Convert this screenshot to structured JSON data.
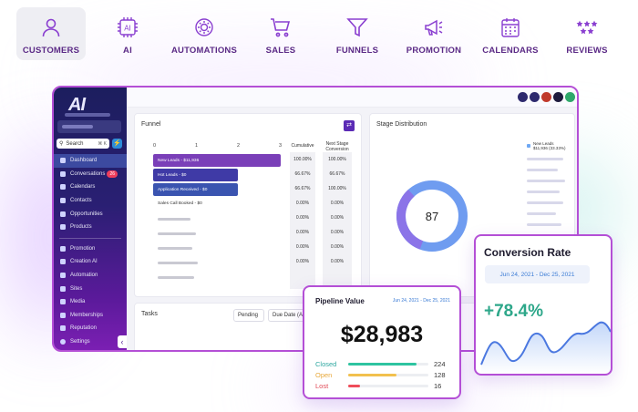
{
  "nav": [
    {
      "label": "CUSTOMERS",
      "icon": "user-icon",
      "active": true
    },
    {
      "label": "AI",
      "icon": "ai-chip-icon",
      "icon_text": "AI",
      "active": false
    },
    {
      "label": "AUTOMATIONS",
      "icon": "automation-gear-icon",
      "active": false
    },
    {
      "label": "SALES",
      "icon": "cart-icon",
      "active": false
    },
    {
      "label": "FUNNELS",
      "icon": "funnel-icon",
      "active": false
    },
    {
      "label": "PROMOTION",
      "icon": "megaphone-icon",
      "active": false
    },
    {
      "label": "CALENDARS",
      "icon": "calendar-icon",
      "active": false
    },
    {
      "label": "REVIEWS",
      "icon": "stars-icon",
      "active": false
    }
  ],
  "brand_color": "#5b2a86",
  "accent_color": "#b44fd6",
  "dashboard": {
    "logo": "AI",
    "search": {
      "label": "Search",
      "shortcut": "⌘ K"
    },
    "sidebar_menu": [
      {
        "label": "Dashboard",
        "active": true
      },
      {
        "label": "Conversations",
        "badge": "26"
      },
      {
        "label": "Calendars"
      },
      {
        "label": "Contacts"
      },
      {
        "label": "Opportunities"
      },
      {
        "label": "Products"
      }
    ],
    "sidebar_menu_2": [
      {
        "label": "Promotion"
      },
      {
        "label": "Creation AI"
      },
      {
        "label": "Automation"
      },
      {
        "label": "Sites"
      },
      {
        "label": "Media"
      },
      {
        "label": "Memberships"
      },
      {
        "label": "Reputation"
      }
    ],
    "settings_label": "Settings",
    "funnel": {
      "title": "Funnel",
      "axis": [
        "0",
        "1",
        "2",
        "3"
      ],
      "col_cumulative": "Cumulative",
      "col_next": "Next Stage Conversion",
      "stages": [
        {
          "label": "New Leads - $11,936",
          "cumulative": "100.00%",
          "next": "100.00%"
        },
        {
          "label": "Hot Leads - $0",
          "cumulative": "66.67%",
          "next": "66.67%"
        },
        {
          "label": "Application Received - $0",
          "cumulative": "66.67%",
          "next": "100.00%"
        },
        {
          "label": "Sales Call Booked - $0",
          "cumulative": "0.00%",
          "next": "0.00%"
        },
        {
          "label": "",
          "cumulative": "0.00%",
          "next": "0.00%"
        },
        {
          "label": "",
          "cumulative": "0.00%",
          "next": "0.00%"
        },
        {
          "label": "",
          "cumulative": "0.00%",
          "next": "0.00%"
        },
        {
          "label": "",
          "cumulative": "0.00%",
          "next": "0.00%"
        }
      ]
    },
    "stage_distribution": {
      "title": "Stage Distribution",
      "value": "87",
      "legend": [
        {
          "label": "New Leads",
          "sub": "$11,936 (33.33%)",
          "color": "#6fa8f3"
        }
      ]
    },
    "tasks": {
      "title": "Tasks",
      "filter_1": "Pending",
      "filter_2": "Due Date (A"
    }
  },
  "pipeline": {
    "title": "Pipeline Value",
    "date_range": "Jun 24, 2021 - Dec 25, 2021",
    "value": "$28,983",
    "rows": [
      {
        "label": "Closed",
        "count": "224",
        "fraction": 0.85,
        "color": "#2ec4a0",
        "label_color": "#2ea7a0"
      },
      {
        "label": "Open",
        "count": "128",
        "fraction": 0.6,
        "color": "#f2c14e",
        "label_color": "#e8a93b"
      },
      {
        "label": "Lost",
        "count": "16",
        "fraction": 0.15,
        "color": "#ef4d5a",
        "label_color": "#e14b57"
      }
    ]
  },
  "conversion": {
    "title": "Conversion Rate",
    "date_range": "Jun 24, 2021 - Dec 25, 2021",
    "value": "+78.4%",
    "value_color": "#2ea78a"
  }
}
